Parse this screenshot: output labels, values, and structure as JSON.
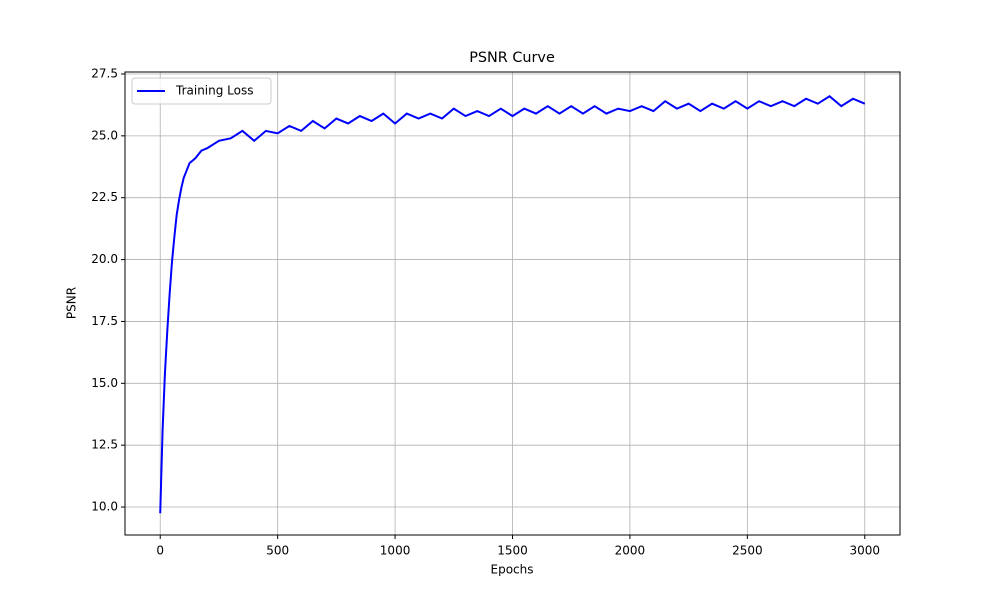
{
  "chart_data": {
    "type": "line",
    "title": "PSNR Curve",
    "x_label": "Epochs",
    "y_label": "PSNR",
    "x": [
      0,
      10,
      20,
      30,
      40,
      50,
      60,
      70,
      80,
      90,
      100,
      125,
      150,
      175,
      200,
      250,
      300,
      350,
      400,
      450,
      500,
      550,
      600,
      650,
      700,
      750,
      800,
      850,
      900,
      950,
      1000,
      1050,
      1100,
      1150,
      1200,
      1250,
      1300,
      1350,
      1400,
      1450,
      1500,
      1550,
      1600,
      1650,
      1700,
      1750,
      1800,
      1850,
      1900,
      1950,
      2000,
      2050,
      2100,
      2150,
      2200,
      2250,
      2300,
      2350,
      2400,
      2450,
      2500,
      2550,
      2600,
      2650,
      2700,
      2750,
      2800,
      2850,
      2900,
      2950,
      3000
    ],
    "series": [
      {
        "name": "Training Loss",
        "color": "#0000ff",
        "values": [
          9.75,
          13.1,
          15.4,
          17.1,
          18.6,
          19.9,
          20.9,
          21.8,
          22.4,
          22.9,
          23.3,
          23.9,
          24.1,
          24.4,
          24.5,
          24.8,
          24.9,
          25.2,
          24.8,
          25.2,
          25.1,
          25.4,
          25.2,
          25.6,
          25.3,
          25.7,
          25.5,
          25.8,
          25.6,
          25.9,
          25.5,
          25.9,
          25.7,
          25.9,
          25.7,
          26.1,
          25.8,
          26.0,
          25.8,
          26.1,
          25.8,
          26.1,
          25.9,
          26.2,
          25.9,
          26.2,
          25.9,
          26.2,
          25.9,
          26.1,
          26.0,
          26.2,
          26.0,
          26.4,
          26.1,
          26.3,
          26.0,
          26.3,
          26.1,
          26.4,
          26.1,
          26.4,
          26.2,
          26.4,
          26.2,
          26.5,
          26.3,
          26.6,
          26.2,
          26.5,
          26.3
        ]
      }
    ],
    "xlim": [
      -150,
      3150
    ],
    "ylim": [
      8.87,
      27.58
    ],
    "xticks": [
      0,
      500,
      1000,
      1500,
      2000,
      2500,
      3000
    ],
    "yticks": [
      {
        "value": 10,
        "label": "10.0"
      },
      12.5,
      {
        "value": 15,
        "label": "15.0"
      },
      17.5,
      {
        "value": 20,
        "label": "20.0"
      },
      22.5,
      {
        "value": 25,
        "label": "25.0"
      },
      27.5
    ],
    "grid": true,
    "legend": "upper left"
  }
}
